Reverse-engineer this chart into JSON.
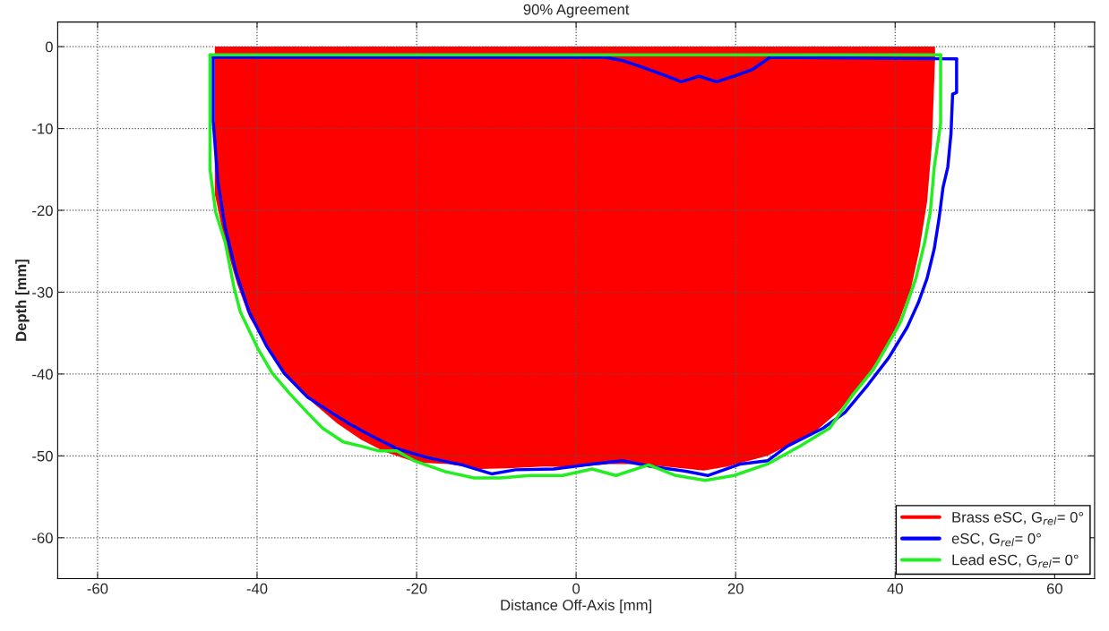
{
  "chart_data": {
    "type": "line",
    "title": "90% Agreement",
    "xlabel": "Distance Off-Axis [mm]",
    "ylabel": "Depth [mm]",
    "xlim": [
      -65,
      65
    ],
    "xticks": [
      -60,
      -40,
      -20,
      0,
      20,
      40,
      60
    ],
    "ylim": [
      -65,
      3
    ],
    "yticks": [
      -60,
      -50,
      -40,
      -30,
      -20,
      -10,
      0
    ],
    "grid": true,
    "legend": "bottom right",
    "line_style": "solid",
    "marker": "none",
    "series": [
      {
        "name": "Brass eSC, G$_{rel}$= 0°",
        "type": "area",
        "color": "#ff0000",
        "x": [
          -45.3,
          -44,
          -42.5,
          -41,
          -38.5,
          -36,
          -33,
          -30,
          -27,
          -24,
          -20,
          -16,
          -12,
          -8,
          -4,
          0,
          4,
          6,
          8,
          10,
          12,
          13,
          16,
          19,
          20,
          22,
          24,
          27,
          30,
          33,
          35,
          37,
          39,
          40.5,
          42,
          43,
          44,
          44.6,
          45
        ],
        "values": [
          -18,
          -24,
          -29,
          -33,
          -37,
          -40.5,
          -43.5,
          -46,
          -48,
          -49.5,
          -50.8,
          -51,
          -51.6,
          -51.5,
          -51.3,
          -51.4,
          -51,
          -51,
          -51,
          -51.2,
          -51.4,
          -51.5,
          -51.8,
          -51.3,
          -51,
          -50.5,
          -50,
          -48.5,
          -47,
          -44.5,
          -42,
          -39.5,
          -36.5,
          -33.5,
          -29.5,
          -25,
          -19,
          -12,
          -1.5
        ]
      },
      {
        "name": "eSC, G$_{rel}$= 0°",
        "color": "#0000ff",
        "x": [
          -45.5,
          -45.5,
          -44.9,
          -44.0,
          -42.6,
          -41.0,
          -38.8,
          -36.6,
          -33.7,
          -30.7,
          -28.4,
          -25.4,
          -22.5,
          -18.7,
          -14.3,
          -10.6,
          -7.6,
          -2.8,
          2.0,
          5.8,
          9.5,
          13.9,
          16.5,
          20.6,
          24.0,
          26.5,
          31.0,
          33.7,
          36.6,
          39.2,
          41.5,
          42.9,
          44.0,
          44.9,
          45.5,
          46.0,
          46.6,
          47.0,
          47.2,
          47.7,
          47.7
        ],
        "values": [
          -1.3,
          -9.1,
          -16.6,
          -22.1,
          -27.7,
          -32.4,
          -36.6,
          -39.9,
          -42.8,
          -44.7,
          -46.1,
          -47.7,
          -49.1,
          -50.2,
          -51.1,
          -52.2,
          -51.7,
          -51.6,
          -51.0,
          -50.6,
          -51.3,
          -51.9,
          -52.4,
          -51.0,
          -50.6,
          -48.8,
          -46.6,
          -44.7,
          -41.3,
          -38.0,
          -34.3,
          -31.3,
          -28.3,
          -24.7,
          -21.0,
          -17.2,
          -14.7,
          -10.6,
          -5.8,
          -5.6,
          -1.5
        ]
      },
      {
        "color": "#0000ff",
        "x": [
          -45.5,
          3.6,
          5.8,
          8.0,
          11.4,
          13.2,
          15.4,
          17.6,
          19.8,
          22.1,
          24.3,
          47.7
        ],
        "values": [
          -1.3,
          -1.3,
          -1.7,
          -2.4,
          -3.6,
          -4.3,
          -3.6,
          -4.3,
          -3.6,
          -2.8,
          -1.3,
          -1.5
        ]
      },
      {
        "name": "Lead eSC, G$_{rel}$= 0°",
        "color": "#22ee22",
        "x": [
          -45.9,
          -45.9,
          -45.2,
          -44.0,
          -42.9,
          -42.1,
          -39.9,
          -38.1,
          -35.9,
          -33.7,
          -31.8,
          -29.2,
          -27.0,
          -24.7,
          -22.5,
          -20.3,
          -16.5,
          -12.8,
          -9.5,
          -5.8,
          -1.7,
          2.0,
          5.0,
          9.1,
          12.5,
          16.2,
          19.8,
          24.0,
          28.1,
          31.8,
          34.8,
          37.3,
          39.9,
          40.7,
          42.6,
          43.7,
          44.4,
          44.9,
          45.7,
          45.7
        ],
        "values": [
          -1,
          -15,
          -20.2,
          -23.9,
          -29.4,
          -32.4,
          -36.9,
          -39.9,
          -42.4,
          -44.7,
          -46.6,
          -48.3,
          -48.8,
          -49.4,
          -49.4,
          -50.6,
          -51.9,
          -52.7,
          -52.7,
          -52.4,
          -52.4,
          -51.6,
          -52.4,
          -51.1,
          -52.4,
          -53.0,
          -52.4,
          -51.0,
          -48.8,
          -46.6,
          -42.4,
          -39.4,
          -35.0,
          -33.6,
          -28.3,
          -23.9,
          -20.2,
          -14.7,
          -9.4,
          -1
        ]
      },
      {
        "color": "#22ee22",
        "x": [
          -45.9,
          45.7
        ],
        "values": [
          -1,
          -1
        ]
      }
    ]
  }
}
